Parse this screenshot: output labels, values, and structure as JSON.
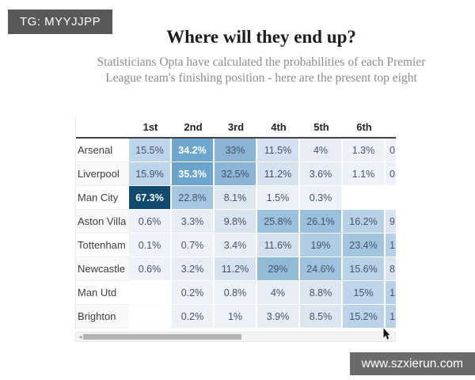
{
  "badge": {
    "label": "TG: MYYJJPP",
    "bg": "#59595b"
  },
  "header": {
    "title": "Where will they end up?",
    "subtitle": "Statisticians Opta have calculated the probabilities of each Premier League team's finishing position - here are the present top eight"
  },
  "watermark": {
    "label": "www.szxierun.com",
    "bg": "#6a6a6c"
  },
  "colors": {
    "heat_max": "#114a6e",
    "heat_high": "#6ea6ce",
    "heat_low": "#eef1f8",
    "header_rule": "#404040"
  },
  "table": {
    "columns": [
      "1st",
      "2nd",
      "3rd",
      "4th",
      "5th",
      "6th"
    ],
    "rows": [
      {
        "team": "Arsenal",
        "cells": [
          {
            "v": "15.5%",
            "bg": "#bed4e9"
          },
          {
            "v": "34.2%",
            "bg": "#6ea6ce",
            "light": true
          },
          {
            "v": "33%",
            "bg": "#8ab4d6"
          },
          {
            "v": "11.5%",
            "bg": "#d3e0ef"
          },
          {
            "v": "4%",
            "bg": "#e7ecf5"
          },
          {
            "v": "1.3%",
            "bg": "#edf0f7"
          },
          {
            "v": "0",
            "bg": "#eef1f8",
            "frag": true
          }
        ]
      },
      {
        "team": "Liverpool",
        "cells": [
          {
            "v": "15.9%",
            "bg": "#bcd3e8"
          },
          {
            "v": "35.3%",
            "bg": "#6aa3cc",
            "light": true
          },
          {
            "v": "32.5%",
            "bg": "#8bb5d7"
          },
          {
            "v": "11.2%",
            "bg": "#d4e1ef"
          },
          {
            "v": "3.6%",
            "bg": "#e8edf5"
          },
          {
            "v": "1.1%",
            "bg": "#edf1f8"
          },
          {
            "v": "0",
            "bg": "#eef1f8",
            "frag": true
          }
        ]
      },
      {
        "team": "Man City",
        "cells": [
          {
            "v": "67.3%",
            "bg": "#114a6e",
            "light": true
          },
          {
            "v": "22.8%",
            "bg": "#a4c6e0"
          },
          {
            "v": "8.1%",
            "bg": "#dde7f2"
          },
          {
            "v": "1.5%",
            "bg": "#edf0f7"
          },
          {
            "v": "0.3%",
            "bg": "#eef1f8"
          },
          {
            "v": "",
            "bg": ""
          },
          {
            "v": "",
            "bg": "",
            "frag": true
          }
        ]
      },
      {
        "team": "Aston Villa",
        "cells": [
          {
            "v": "0.6%",
            "bg": "#eef1f8"
          },
          {
            "v": "3.3%",
            "bg": "#e8edf5"
          },
          {
            "v": "9.8%",
            "bg": "#d8e4f0"
          },
          {
            "v": "25.8%",
            "bg": "#9cc1dc"
          },
          {
            "v": "26.1%",
            "bg": "#9bc0dc"
          },
          {
            "v": "16.2%",
            "bg": "#b9d1e7"
          },
          {
            "v": "9",
            "bg": "#d8e4f0",
            "frag": true
          }
        ]
      },
      {
        "team": "Tottenham",
        "cells": [
          {
            "v": "0.1%",
            "bg": "#eff2f8"
          },
          {
            "v": "0.7%",
            "bg": "#eef1f8"
          },
          {
            "v": "3.4%",
            "bg": "#e8edf5"
          },
          {
            "v": "11.6%",
            "bg": "#d2e0ee"
          },
          {
            "v": "19%",
            "bg": "#aecce3"
          },
          {
            "v": "23.4%",
            "bg": "#a2c4df"
          },
          {
            "v": "1",
            "bg": "#b9d1e7",
            "frag": true
          }
        ]
      },
      {
        "team": "Newcastle",
        "cells": [
          {
            "v": "0.6%",
            "bg": "#eef1f8"
          },
          {
            "v": "3.2%",
            "bg": "#e8edf5"
          },
          {
            "v": "11.2%",
            "bg": "#d4e1ef"
          },
          {
            "v": "29%",
            "bg": "#90bad8"
          },
          {
            "v": "24.6%",
            "bg": "#9fc3de"
          },
          {
            "v": "15.6%",
            "bg": "#bad2e7"
          },
          {
            "v": "8",
            "bg": "#d8e4f0",
            "frag": true
          }
        ]
      },
      {
        "team": "Man Utd",
        "cells": [
          {
            "v": "",
            "bg": ""
          },
          {
            "v": "0.2%",
            "bg": "#eef1f8"
          },
          {
            "v": "0.8%",
            "bg": "#edf1f8"
          },
          {
            "v": "4%",
            "bg": "#e7ecf5"
          },
          {
            "v": "8.8%",
            "bg": "#dbe6f1"
          },
          {
            "v": "15%",
            "bg": "#bed4e9"
          },
          {
            "v": "1",
            "bg": "#b9d1e7",
            "frag": true
          }
        ]
      },
      {
        "team": "Brighton",
        "cells": [
          {
            "v": "",
            "bg": ""
          },
          {
            "v": "0.2%",
            "bg": "#eef1f8"
          },
          {
            "v": "1%",
            "bg": "#edf1f8"
          },
          {
            "v": "3.9%",
            "bg": "#e7ecf5"
          },
          {
            "v": "8.5%",
            "bg": "#dbe6f1"
          },
          {
            "v": "15.2%",
            "bg": "#bdd3e8"
          },
          {
            "v": "1",
            "bg": "#b9d1e7",
            "frag": true
          }
        ]
      }
    ]
  },
  "scrollbar": {
    "left_arrow": "◂"
  },
  "chart_data": {
    "type": "heatmap",
    "title": "Where will they end up?",
    "subtitle": "Statisticians Opta have calculated the probabilities of each Premier League team's finishing position - here are the present top eight",
    "x_categories": [
      "1st",
      "2nd",
      "3rd",
      "4th",
      "5th",
      "6th"
    ],
    "y_categories": [
      "Arsenal",
      "Liverpool",
      "Man City",
      "Aston Villa",
      "Tottenham",
      "Newcastle",
      "Man Utd",
      "Brighton"
    ],
    "values_pct": [
      [
        15.5,
        34.2,
        33,
        11.5,
        4,
        1.3
      ],
      [
        15.9,
        35.3,
        32.5,
        11.2,
        3.6,
        1.1
      ],
      [
        67.3,
        22.8,
        8.1,
        1.5,
        0.3,
        null
      ],
      [
        0.6,
        3.3,
        9.8,
        25.8,
        26.1,
        16.2
      ],
      [
        0.1,
        0.7,
        3.4,
        11.6,
        19,
        23.4
      ],
      [
        0.6,
        3.2,
        11.2,
        29,
        24.6,
        15.6
      ],
      [
        null,
        0.2,
        0.8,
        4,
        8.8,
        15
      ],
      [
        null,
        0.2,
        1,
        3.9,
        8.5,
        15.2
      ]
    ],
    "value_range": [
      0,
      67.3
    ],
    "color_scale": [
      "#eef1f8",
      "#114a6e"
    ],
    "notes": "Table is horizontally scrollable; a 7th column is partially clipped at the right edge"
  }
}
